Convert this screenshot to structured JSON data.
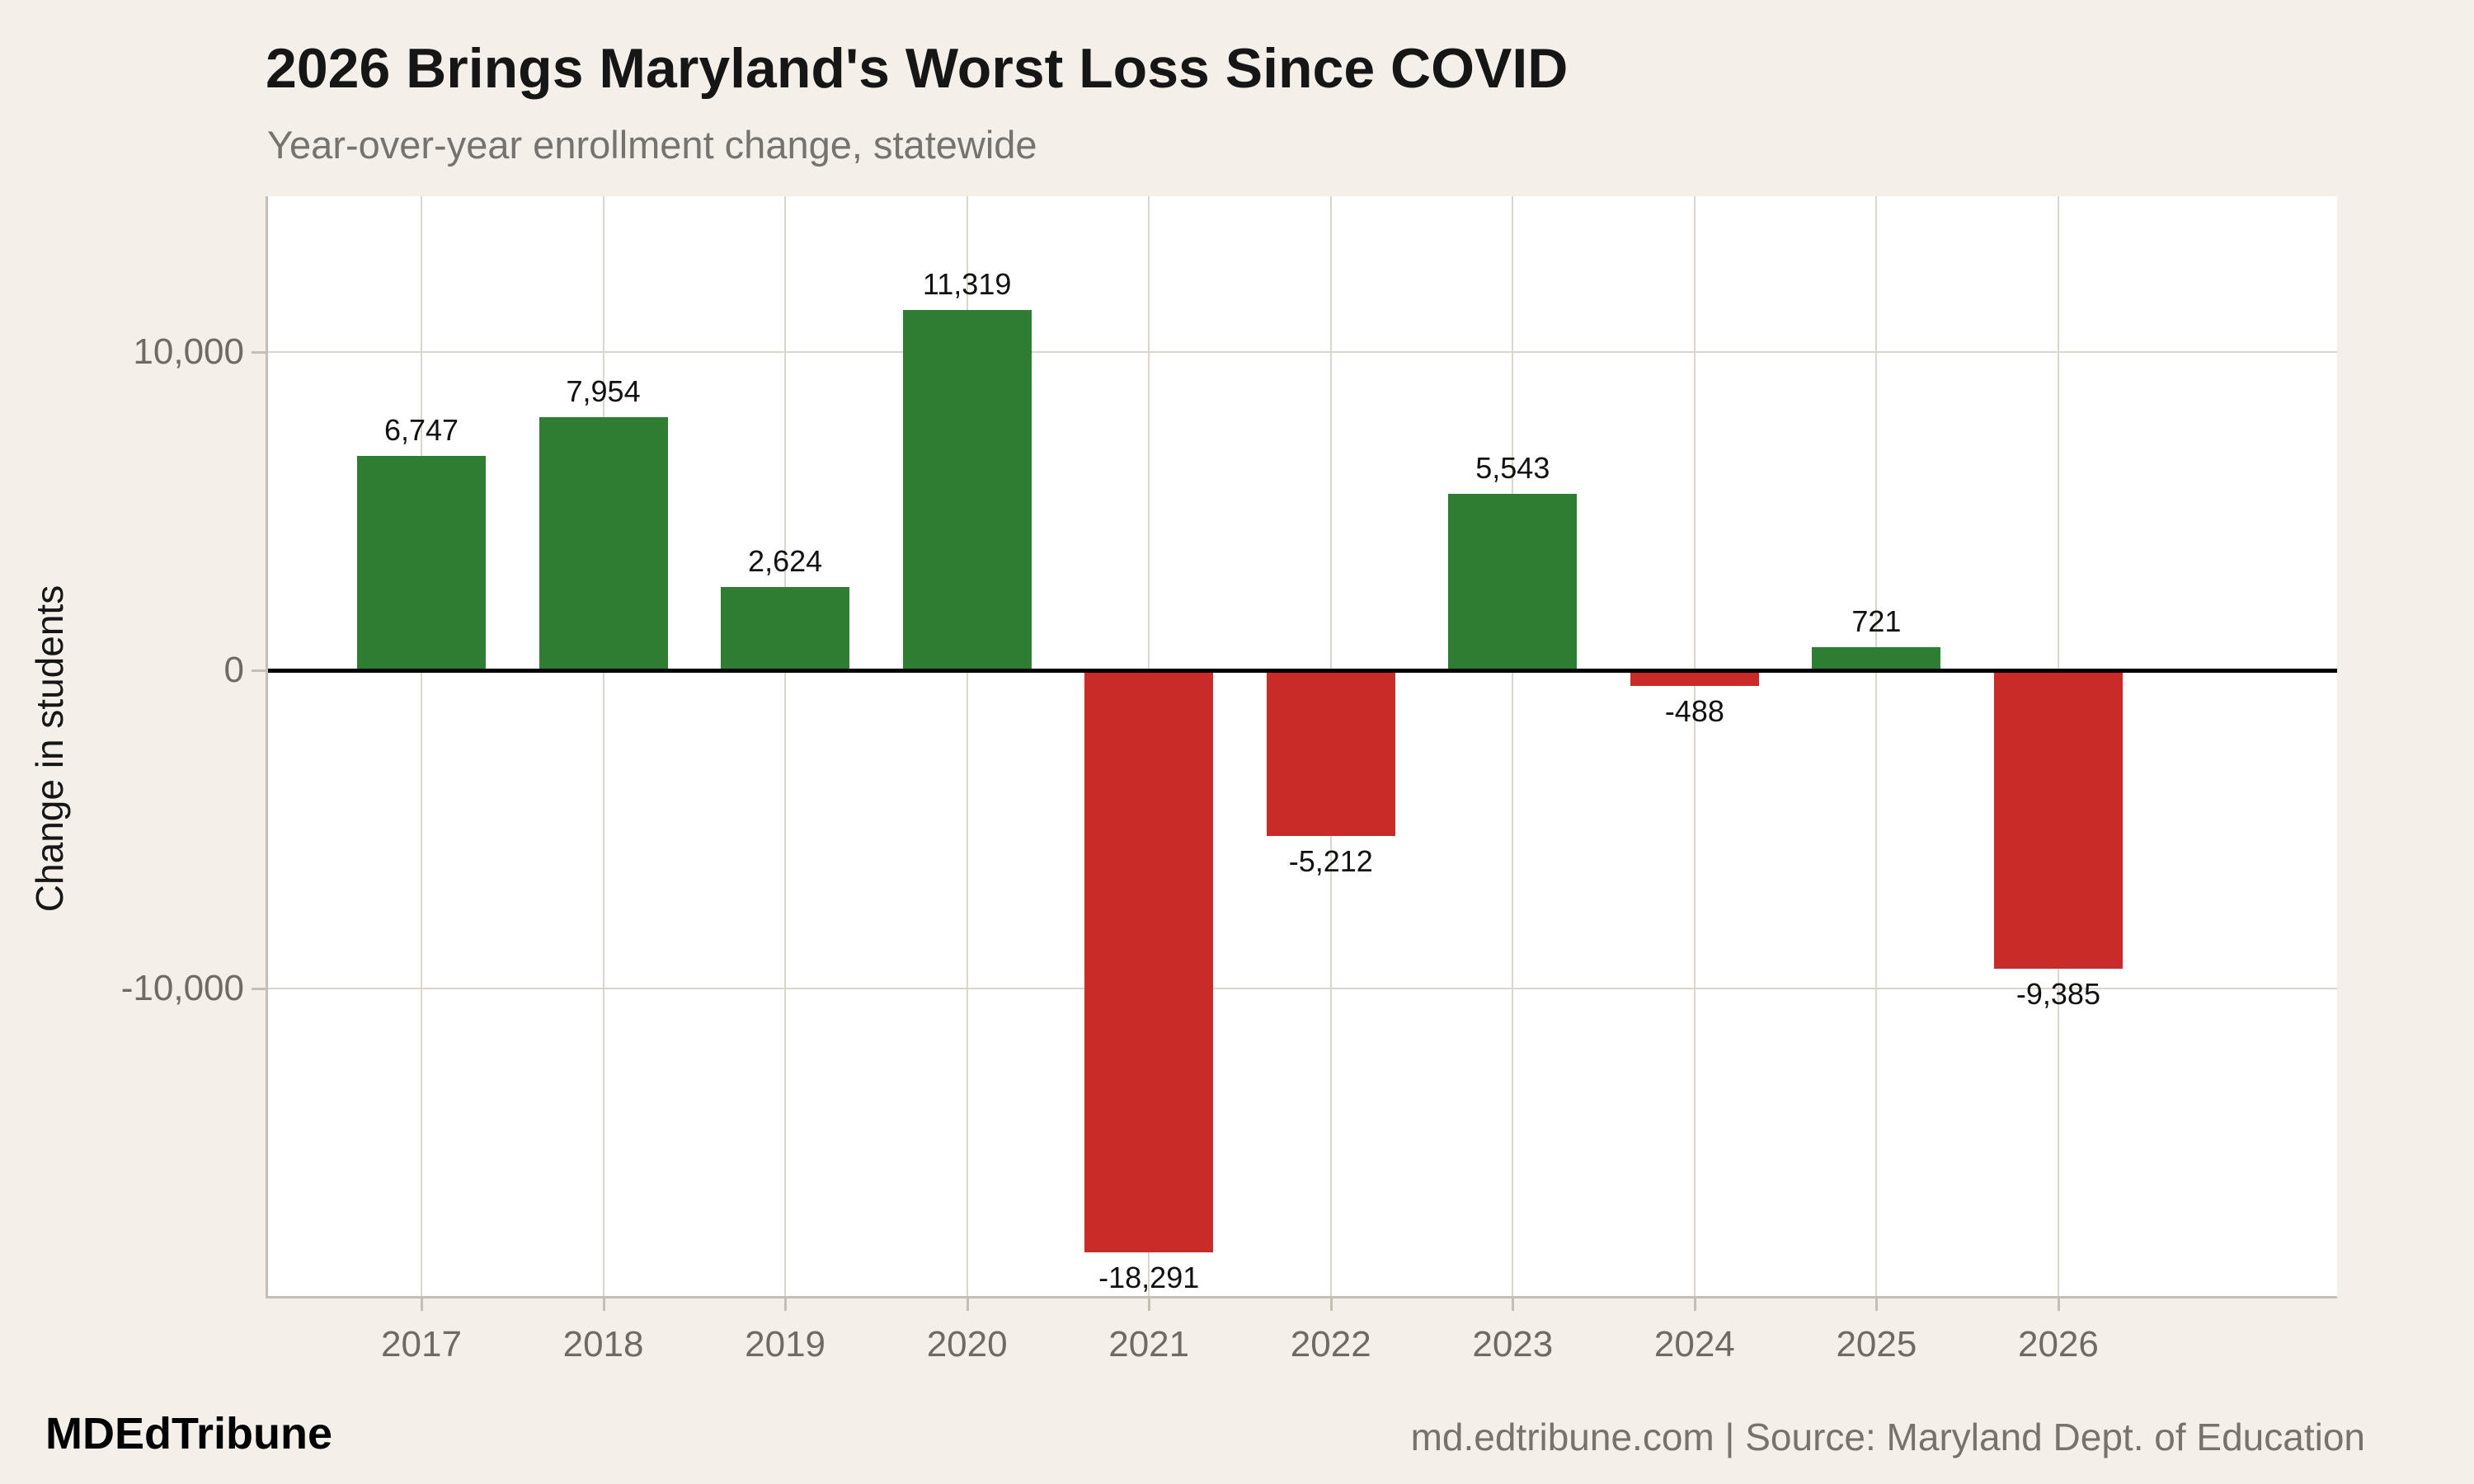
{
  "header": {
    "title": "2026 Brings Maryland's Worst Loss Since COVID",
    "subtitle": "Year-over-year enrollment change, statewide"
  },
  "footer": {
    "brand": "MDEdTribune",
    "source": "md.edtribune.com | Source: Maryland Dept. of Education"
  },
  "chart_data": {
    "type": "bar",
    "title": "2026 Brings Maryland's Worst Loss Since COVID",
    "subtitle": "Year-over-year enrollment change, statewide",
    "xlabel": "",
    "ylabel": "Change in students",
    "categories": [
      "2017",
      "2018",
      "2019",
      "2020",
      "2021",
      "2022",
      "2023",
      "2024",
      "2025",
      "2026"
    ],
    "values": [
      6747,
      7954,
      2624,
      11319,
      -18291,
      -5212,
      5543,
      -488,
      721,
      -9385
    ],
    "value_labels": [
      "6,747",
      "7,954",
      "2,624",
      "11,319",
      "-18,291",
      "-5,212",
      "5,543",
      "-488",
      "721",
      "-9,385"
    ],
    "ylim": [
      -19770,
      14900
    ],
    "yticks": [
      {
        "value": 10000,
        "label": "10,000"
      },
      {
        "value": 0,
        "label": "0"
      },
      {
        "value": -10000,
        "label": "-10,000"
      }
    ],
    "grid": true,
    "legend": false,
    "zero_line": true,
    "colors": {
      "positive": "#2e7d33",
      "negative": "#c82b28",
      "background": "#f4f0e9",
      "plot_background": "#ffffff",
      "gridline": "#dbd6cd",
      "axis_line": "#c4beb4",
      "zero_line": "#000000",
      "tick_label": "#6f6b64",
      "value_label": "#111111",
      "subtitle": "#76726d",
      "source_text": "#77726b"
    }
  }
}
